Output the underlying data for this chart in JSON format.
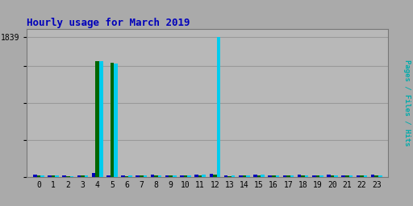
{
  "title": "Hourly usage for March 2019",
  "title_color": "#0000bb",
  "title_fontsize": 9,
  "ylabel_right": "Pages / Files / Hits",
  "background_color": "#aaaaaa",
  "plot_bg_color": "#b8b8b8",
  "grid_color": "#999999",
  "hours": [
    0,
    1,
    2,
    3,
    4,
    5,
    6,
    7,
    8,
    9,
    10,
    11,
    12,
    13,
    14,
    15,
    16,
    17,
    18,
    19,
    20,
    21,
    22,
    23
  ],
  "pages": [
    30,
    22,
    18,
    22,
    55,
    28,
    20,
    28,
    30,
    22,
    28,
    35,
    40,
    20,
    28,
    32,
    28,
    22,
    30,
    28,
    30,
    28,
    22,
    30
  ],
  "files": [
    25,
    18,
    14,
    18,
    1530,
    1500,
    16,
    24,
    25,
    18,
    22,
    28,
    35,
    16,
    22,
    26,
    22,
    18,
    25,
    22,
    25,
    22,
    18,
    26
  ],
  "hits": [
    28,
    20,
    16,
    20,
    1520,
    1490,
    18,
    22,
    28,
    20,
    25,
    32,
    1839,
    18,
    25,
    29,
    25,
    20,
    28,
    25,
    28,
    25,
    20,
    28
  ],
  "pages_color": "#0000bb",
  "files_color": "#006600",
  "hits_color": "#00ccee",
  "bar_width": 0.25,
  "ylim": [
    0,
    1950
  ],
  "border_color": "#777777",
  "right_label_color": "#00aaaa",
  "tick_fontsize": 7
}
